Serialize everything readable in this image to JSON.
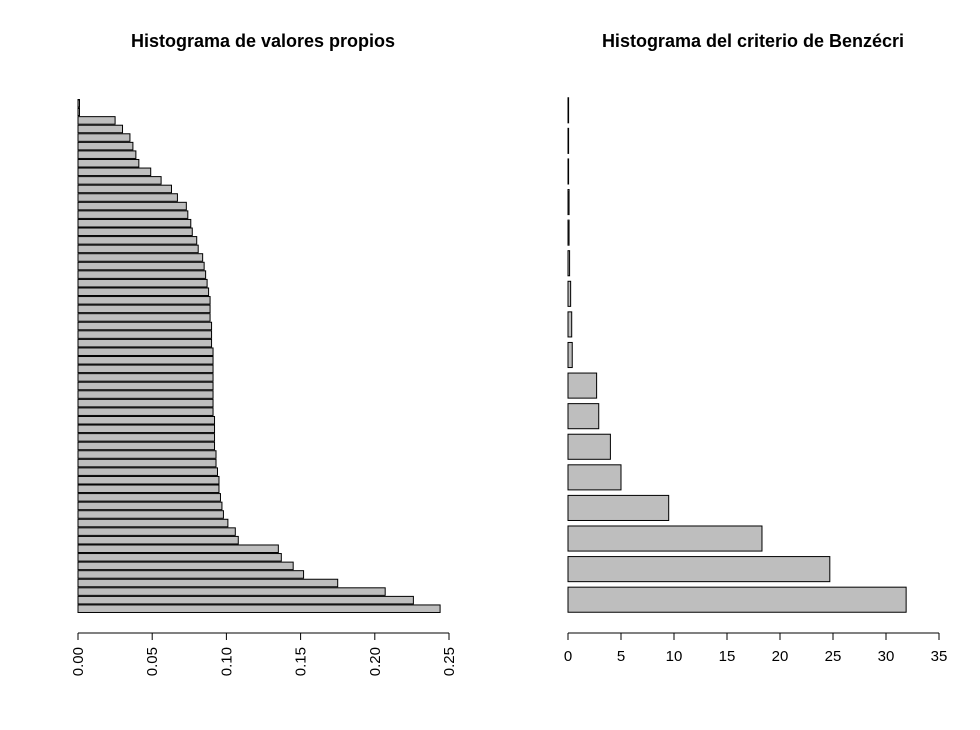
{
  "chart_data": [
    {
      "type": "bar",
      "orientation": "horizontal",
      "title": "Histograma de valores propios",
      "xlabel": "",
      "ylabel": "",
      "xlim": [
        0,
        0.25
      ],
      "xticks": [
        "0.00",
        "0.05",
        "0.10",
        "0.15",
        "0.20",
        "0.25"
      ],
      "tick_label_rotation": "vertical",
      "grid": false,
      "bar_color": "#bebebe",
      "values": [
        0.244,
        0.226,
        0.207,
        0.175,
        0.152,
        0.145,
        0.137,
        0.135,
        0.108,
        0.106,
        0.101,
        0.098,
        0.097,
        0.096,
        0.095,
        0.095,
        0.094,
        0.093,
        0.093,
        0.092,
        0.092,
        0.092,
        0.092,
        0.091,
        0.091,
        0.091,
        0.091,
        0.091,
        0.091,
        0.091,
        0.091,
        0.09,
        0.09,
        0.09,
        0.089,
        0.089,
        0.089,
        0.088,
        0.087,
        0.086,
        0.085,
        0.084,
        0.081,
        0.08,
        0.077,
        0.076,
        0.074,
        0.073,
        0.067,
        0.063,
        0.056,
        0.049,
        0.041,
        0.039,
        0.037,
        0.035,
        0.03,
        0.025,
        0.001,
        0.001
      ]
    },
    {
      "type": "bar",
      "orientation": "horizontal",
      "title": "Histograma del criterio de Benzécri",
      "xlabel": "",
      "ylabel": "",
      "xlim": [
        0,
        35
      ],
      "xticks": [
        "0",
        "5",
        "10",
        "15",
        "20",
        "25",
        "30",
        "35"
      ],
      "grid": false,
      "bar_color": "#bebebe",
      "values": [
        31.9,
        24.7,
        18.3,
        9.5,
        5.0,
        4.0,
        2.9,
        2.7,
        0.4,
        0.35,
        0.25,
        0.15,
        0.1,
        0.1,
        0.05,
        0.02,
        0.01
      ]
    }
  ]
}
